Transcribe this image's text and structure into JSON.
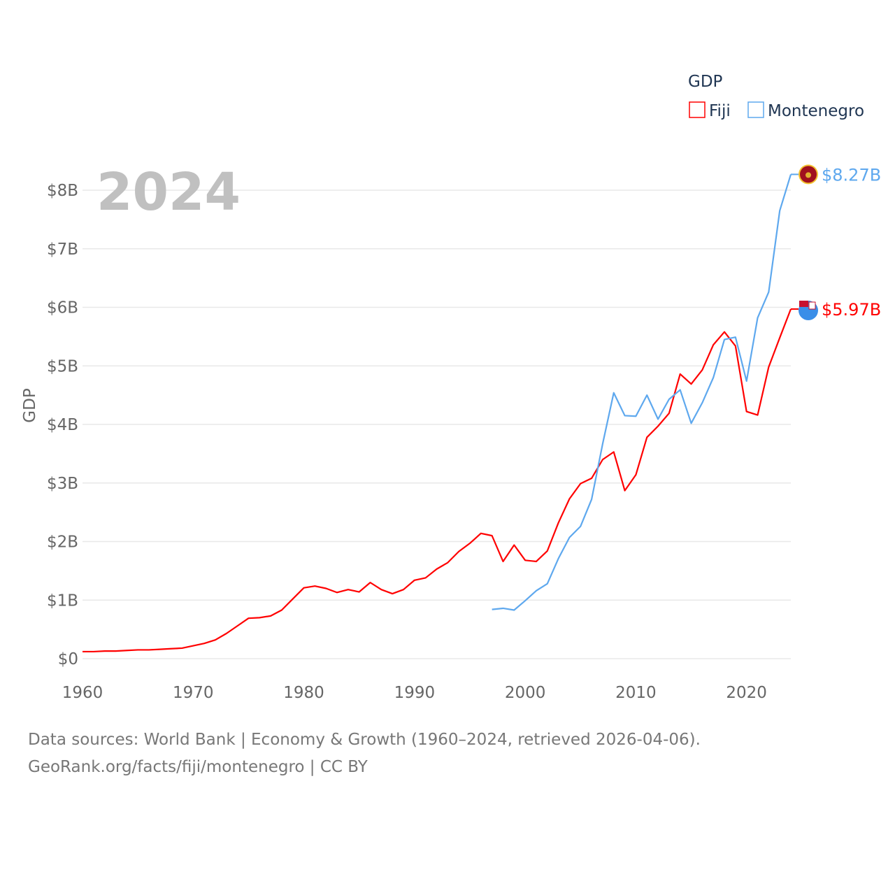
{
  "chart_data": {
    "type": "line",
    "title": "",
    "year_label": "2024",
    "xlabel": "",
    "ylabel": "GDP",
    "xlim": [
      1960,
      2024
    ],
    "ylim": [
      0,
      8.27
    ],
    "x_ticks": [
      1960,
      1970,
      1980,
      1990,
      2000,
      2010,
      2020
    ],
    "x_tick_labels": [
      "1960",
      "1970",
      "1980",
      "1990",
      "2000",
      "2010",
      "2020"
    ],
    "y_ticks": [
      0,
      1,
      2,
      3,
      4,
      5,
      6,
      7,
      8
    ],
    "y_tick_labels": [
      "$0",
      "$1B",
      "$2B",
      "$3B",
      "$4B",
      "$5B",
      "$6B",
      "$7B",
      "$8B"
    ],
    "grid": true,
    "legend": {
      "title": "GDP",
      "placement": "top-right"
    },
    "series": [
      {
        "name": "Fiji",
        "color": "#ff0000",
        "end_label": "$5.97B",
        "flag": "fiji-flag",
        "x": [
          1960,
          1961,
          1962,
          1963,
          1964,
          1965,
          1966,
          1967,
          1968,
          1969,
          1970,
          1971,
          1972,
          1973,
          1974,
          1975,
          1976,
          1977,
          1978,
          1979,
          1980,
          1981,
          1982,
          1983,
          1984,
          1985,
          1986,
          1987,
          1988,
          1989,
          1990,
          1991,
          1992,
          1993,
          1994,
          1995,
          1996,
          1997,
          1998,
          1999,
          2000,
          2001,
          2002,
          2003,
          2004,
          2005,
          2006,
          2007,
          2008,
          2009,
          2010,
          2011,
          2012,
          2013,
          2014,
          2015,
          2016,
          2017,
          2018,
          2019,
          2020,
          2021,
          2022,
          2023,
          2024
        ],
        "values": [
          0.12,
          0.12,
          0.13,
          0.13,
          0.14,
          0.15,
          0.15,
          0.16,
          0.17,
          0.18,
          0.22,
          0.26,
          0.32,
          0.43,
          0.56,
          0.69,
          0.7,
          0.73,
          0.83,
          1.02,
          1.21,
          1.24,
          1.2,
          1.13,
          1.18,
          1.14,
          1.3,
          1.18,
          1.11,
          1.18,
          1.34,
          1.38,
          1.53,
          1.64,
          1.83,
          1.97,
          2.14,
          2.1,
          1.66,
          1.94,
          1.68,
          1.66,
          1.84,
          2.32,
          2.73,
          2.99,
          3.08,
          3.4,
          3.53,
          2.87,
          3.14,
          3.78,
          3.97,
          4.19,
          4.86,
          4.69,
          4.93,
          5.36,
          5.58,
          5.34,
          4.22,
          4.16,
          4.98,
          5.48,
          5.97
        ]
      },
      {
        "name": "Montenegro",
        "color": "#5ea8ee",
        "end_label": "$8.27B",
        "flag": "montenegro-flag",
        "x": [
          1997,
          1998,
          1999,
          2000,
          2001,
          2002,
          2003,
          2004,
          2005,
          2006,
          2007,
          2008,
          2009,
          2010,
          2011,
          2012,
          2013,
          2014,
          2015,
          2016,
          2017,
          2018,
          2019,
          2020,
          2021,
          2022,
          2023,
          2024
        ],
        "values": [
          0.84,
          0.86,
          0.83,
          0.99,
          1.16,
          1.28,
          1.71,
          2.07,
          2.26,
          2.72,
          3.67,
          4.54,
          4.15,
          4.14,
          4.5,
          4.09,
          4.43,
          4.59,
          4.02,
          4.37,
          4.8,
          5.45,
          5.49,
          4.74,
          5.82,
          6.26,
          7.65,
          8.27
        ]
      }
    ]
  },
  "footer": {
    "line1": "Data sources: World Bank | Economy & Growth (1960–2024, retrieved 2026-04-06).",
    "line2": "GeoRank.org/facts/fiji/montenegro | CC BY"
  }
}
